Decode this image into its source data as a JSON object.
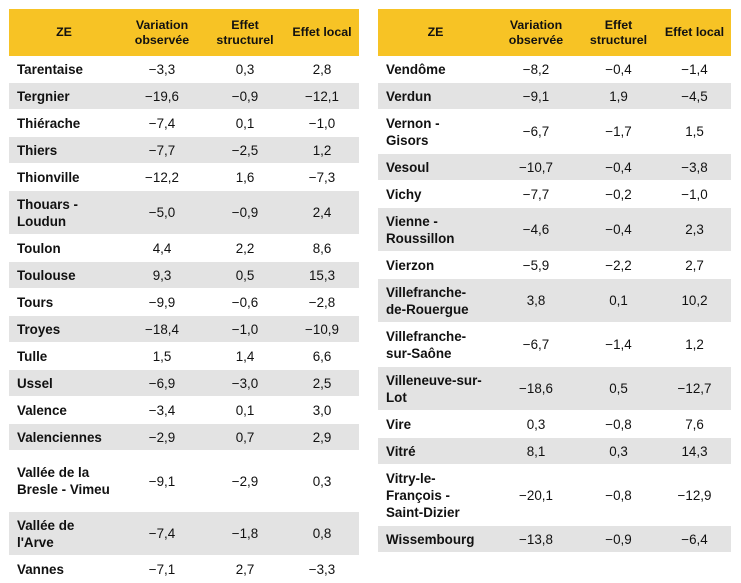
{
  "headers": {
    "ze": "ZE",
    "variation": "Variation observée",
    "structurel": "Effet structurel",
    "local": "Effet local"
  },
  "left_rows": [
    {
      "ze": "Tarentaise",
      "variation": "−3,3",
      "structurel": "0,3",
      "local": "2,8"
    },
    {
      "ze": "Tergnier",
      "variation": "−19,6",
      "structurel": "−0,9",
      "local": "−12,1"
    },
    {
      "ze": "Thiérache",
      "variation": "−7,4",
      "structurel": "0,1",
      "local": "−1,0"
    },
    {
      "ze": "Thiers",
      "variation": "−7,7",
      "structurel": "−2,5",
      "local": "1,2"
    },
    {
      "ze": "Thionville",
      "variation": "−12,2",
      "structurel": "1,6",
      "local": "−7,3"
    },
    {
      "ze": "Thouars - Loudun",
      "variation": "−5,0",
      "structurel": "−0,9",
      "local": "2,4"
    },
    {
      "ze": "Toulon",
      "variation": "4,4",
      "structurel": "2,2",
      "local": "8,6"
    },
    {
      "ze": "Toulouse",
      "variation": "9,3",
      "structurel": "0,5",
      "local": "15,3"
    },
    {
      "ze": "Tours",
      "variation": "−9,9",
      "structurel": "−0,6",
      "local": "−2,8"
    },
    {
      "ze": "Troyes",
      "variation": "−18,4",
      "structurel": "−1,0",
      "local": "−10,9"
    },
    {
      "ze": "Tulle",
      "variation": "1,5",
      "structurel": "1,4",
      "local": "6,6"
    },
    {
      "ze": "Ussel",
      "variation": "−6,9",
      "structurel": "−3,0",
      "local": "2,5"
    },
    {
      "ze": "Valence",
      "variation": "−3,4",
      "structurel": "0,1",
      "local": "3,0"
    },
    {
      "ze": "Valenciennes",
      "variation": "−2,9",
      "structurel": "0,7",
      "local": "2,9"
    },
    {
      "ze": "Vallée de la Bresle - Vimeu",
      "variation": "−9,1",
      "structurel": "−2,9",
      "local": "0,3"
    },
    {
      "ze": "Vallée de l'Arve",
      "variation": "−7,4",
      "structurel": "−1,8",
      "local": "0,8"
    },
    {
      "ze": "Vannes",
      "variation": "−7,1",
      "structurel": "2,7",
      "local": "−3,3"
    }
  ],
  "right_rows": [
    {
      "ze": "Vendôme",
      "variation": "−8,2",
      "structurel": "−0,4",
      "local": "−1,4"
    },
    {
      "ze": "Verdun",
      "variation": "−9,1",
      "structurel": "1,9",
      "local": "−4,5"
    },
    {
      "ze": "Vernon - Gisors",
      "variation": "−6,7",
      "structurel": "−1,7",
      "local": "1,5"
    },
    {
      "ze": "Vesoul",
      "variation": "−10,7",
      "structurel": "−0,4",
      "local": "−3,8"
    },
    {
      "ze": "Vichy",
      "variation": "−7,7",
      "structurel": "−0,2",
      "local": "−1,0"
    },
    {
      "ze": "Vienne - Roussillon",
      "variation": "−4,6",
      "structurel": "−0,4",
      "local": "2,3"
    },
    {
      "ze": "Vierzon",
      "variation": "−5,9",
      "structurel": "−2,2",
      "local": "2,7"
    },
    {
      "ze": "Villefranche-de-Rouergue",
      "variation": "3,8",
      "structurel": "0,1",
      "local": "10,2"
    },
    {
      "ze": "Villefranche-sur-Saône",
      "variation": "−6,7",
      "structurel": "−1,4",
      "local": "1,2"
    },
    {
      "ze": "Villeneuve-sur-Lot",
      "variation": "−18,6",
      "structurel": "0,5",
      "local": "−12,7"
    },
    {
      "ze": "Vire",
      "variation": "0,3",
      "structurel": "−0,8",
      "local": "7,6"
    },
    {
      "ze": "Vitré",
      "variation": "8,1",
      "structurel": "0,3",
      "local": "14,3"
    },
    {
      "ze": "Vitry-le-François - Saint-Dizier",
      "variation": "−20,1",
      "structurel": "−0,8",
      "local": "−12,9"
    },
    {
      "ze": "Wissembourg",
      "variation": "−13,8",
      "structurel": "−0,9",
      "local": "−6,4"
    }
  ],
  "colors": {
    "header_bg": "#f7c325",
    "stripe_bg": "#e3e3e3"
  }
}
